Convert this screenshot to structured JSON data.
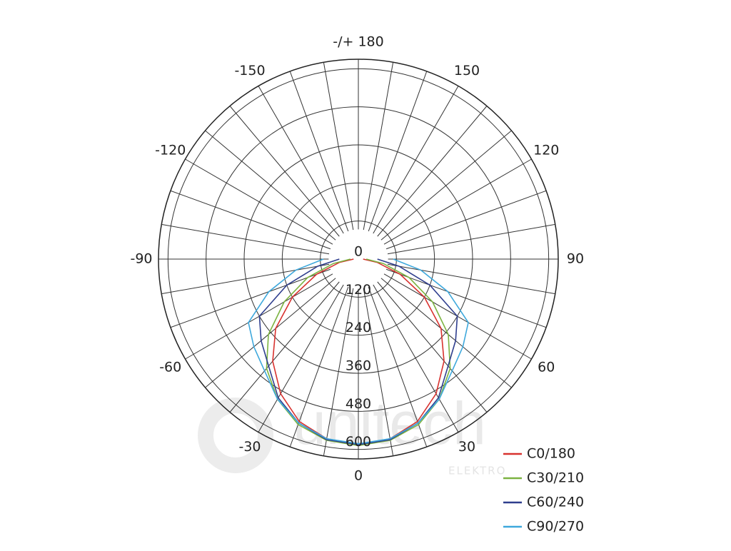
{
  "chart_data": {
    "type": "polar",
    "angles": [
      -90,
      -80,
      -70,
      -60,
      -50,
      -40,
      -30,
      -20,
      -10,
      0,
      10,
      20,
      30,
      40,
      50,
      60,
      70,
      80,
      90
    ],
    "rlim": [
      0,
      630
    ],
    "rticks": [
      0,
      120,
      240,
      360,
      480,
      600
    ],
    "angleticks": [
      {
        "value": 180,
        "label": "-/+ 180"
      },
      150,
      120,
      90,
      60,
      30,
      0,
      -30,
      -60,
      -90,
      -120,
      -150
    ],
    "series": [
      {
        "name": "C0/180",
        "color": "#d8322f",
        "values": [
          15,
          60,
          140,
          240,
          340,
          420,
          490,
          545,
          575,
          585,
          575,
          545,
          490,
          420,
          340,
          240,
          140,
          60,
          15
        ]
      },
      {
        "name": "C30/210",
        "color": "#7cb342",
        "values": [
          25,
          80,
          170,
          270,
          370,
          450,
          510,
          555,
          580,
          588,
          580,
          555,
          510,
          450,
          370,
          270,
          170,
          80,
          25
        ]
      },
      {
        "name": "C60/240",
        "color": "#2f3e8e",
        "values": [
          60,
          130,
          240,
          360,
          400,
          440,
          505,
          550,
          578,
          585,
          578,
          550,
          505,
          440,
          400,
          360,
          240,
          130,
          60
        ]
      },
      {
        "name": "C90/270",
        "color": "#3ea8dc",
        "values": [
          110,
          200,
          300,
          400,
          430,
          460,
          510,
          550,
          575,
          582,
          575,
          550,
          510,
          460,
          430,
          400,
          300,
          200,
          110
        ]
      }
    ],
    "watermark": {
      "brand": "unitech",
      "sub": "ELEKTRO"
    }
  }
}
